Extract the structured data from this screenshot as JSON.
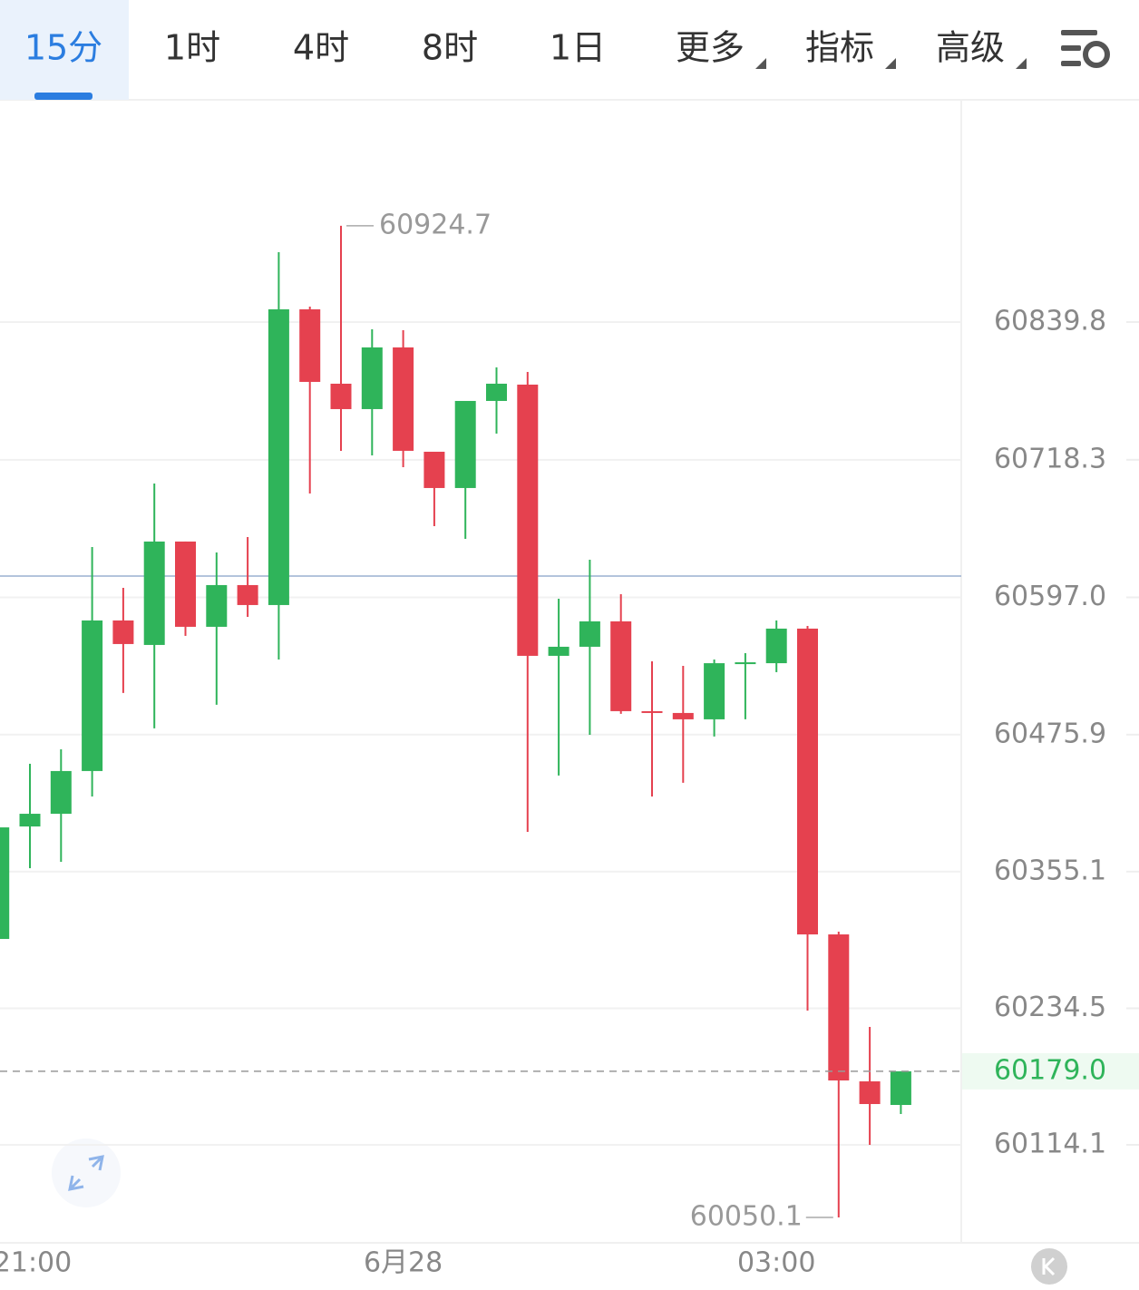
{
  "tabs": [
    "15分",
    "1时",
    "4时",
    "8时",
    "1日",
    "更多",
    "指标",
    "高级"
  ],
  "active_tab": 0,
  "chart_data": {
    "type": "candlestick",
    "categories": [
      null,
      "21:00",
      null,
      null,
      null,
      null,
      null,
      null,
      null,
      null,
      null,
      null,
      null,
      "6月28",
      null,
      null,
      null,
      null,
      null,
      null,
      null,
      null,
      null,
      null,
      null,
      "03:00",
      null,
      null,
      null,
      null
    ],
    "open": [
      60295.7,
      60394.9,
      60406.1,
      60443.8,
      60576.6,
      60555.0,
      60646.2,
      60571.0,
      60607.8,
      60590.2,
      60851.0,
      60785.4,
      60763.0,
      60817.4,
      60725.4,
      60693.4,
      60770.2,
      60784.6,
      60545.4,
      60553.4,
      60575.8,
      60496.6,
      60495.0,
      60489.4,
      60538.9,
      60538.9,
      60569.4,
      60299.7,
      60170.1,
      60149.3
    ],
    "high": [
      60394.1,
      60450.2,
      60462.9,
      60641.4,
      60605.4,
      60697.4,
      60646.2,
      60636.6,
      60650.2,
      60901.4,
      60853.4,
      60924.7,
      60833.4,
      60832.6,
      60725.4,
      60770.2,
      60799.8,
      60795.8,
      60595.8,
      60630.2,
      60599.8,
      60540.6,
      60536.6,
      60542.2,
      60547.8,
      60576.6,
      60571.8,
      60302.1,
      60218.1,
      60179.0
    ],
    "low": [
      60295.7,
      60358.1,
      60363.7,
      60421.3,
      60512.6,
      60481.4,
      60563.0,
      60502.2,
      60579.8,
      60542.2,
      60688.6,
      60726.2,
      60722.2,
      60711.8,
      60659.8,
      60648.6,
      60741.4,
      60390.1,
      60439.8,
      60475.7,
      60494.2,
      60421.3,
      60433.4,
      60474.2,
      60489.4,
      60531.0,
      60232.5,
      60050.1,
      60114.1,
      60141.3
    ],
    "close": [
      60394.1,
      60406.1,
      60443.8,
      60576.6,
      60555.8,
      60646.2,
      60571.0,
      60607.8,
      60590.2,
      60851.0,
      60787.0,
      60763.0,
      60817.4,
      60726.2,
      60693.4,
      60770.2,
      60785.4,
      60545.4,
      60553.4,
      60575.8,
      60496.6,
      60495.8,
      60489.4,
      60538.9,
      60539.7,
      60569.4,
      60299.7,
      60170.9,
      60150.1,
      60179.0
    ],
    "up_color": "#2fb45a",
    "down_color": "#e5414f",
    "ylim": [
      60027.7,
      61034.2
    ],
    "yticks": [
      60839.8,
      60718.3,
      {
        "value": 60597,
        "label": "60597.0"
      },
      60475.9,
      60355.1,
      60234.5,
      60114.1
    ],
    "last_price": {
      "value": 60179,
      "label": "60179.0"
    },
    "ref_line": 60615.8,
    "high_label": 60924.7,
    "low_label": 60050.1,
    "grid": true
  }
}
